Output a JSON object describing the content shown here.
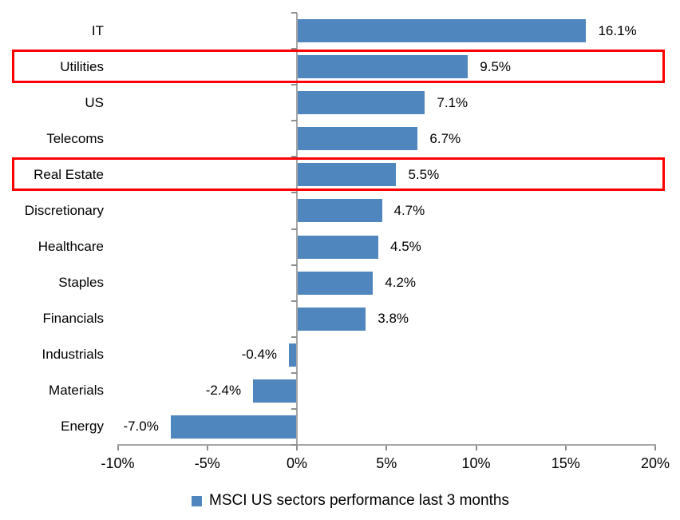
{
  "chart_data": {
    "type": "bar",
    "orientation": "horizontal",
    "title": "",
    "categories": [
      "IT",
      "Utilities",
      "US",
      "Telecoms",
      "Real Estate",
      "Discretionary",
      "Healthcare",
      "Staples",
      "Financials",
      "Industrials",
      "Materials",
      "Energy"
    ],
    "values": [
      16.1,
      9.5,
      7.1,
      6.7,
      5.5,
      4.7,
      4.5,
      4.2,
      3.8,
      -0.4,
      -2.4,
      -7.0
    ],
    "value_labels": [
      "16.1%",
      "9.5%",
      "7.1%",
      "6.7%",
      "5.5%",
      "4.7%",
      "4.5%",
      "4.2%",
      "3.8%",
      "-0.4%",
      "-2.4%",
      "-7.0%"
    ],
    "highlighted_categories": [
      "Utilities",
      "Real Estate"
    ],
    "x_axis": {
      "min": -10,
      "max": 20,
      "tick_values": [
        -10,
        -5,
        0,
        5,
        10,
        15,
        20
      ],
      "tick_labels": [
        "-10%",
        "-5%",
        "0%",
        "5%",
        "10%",
        "15%",
        "20%"
      ],
      "grid": false
    },
    "legend": {
      "position": "bottom-center",
      "marker": "square",
      "label": "MSCI US sectors performance last 3 months"
    },
    "colors": {
      "bar": "#4F86BE",
      "highlight_box": "#FF0000",
      "axis_line": "#A6A6A6",
      "tick": "#8F8F8F",
      "text": "#000000"
    }
  }
}
